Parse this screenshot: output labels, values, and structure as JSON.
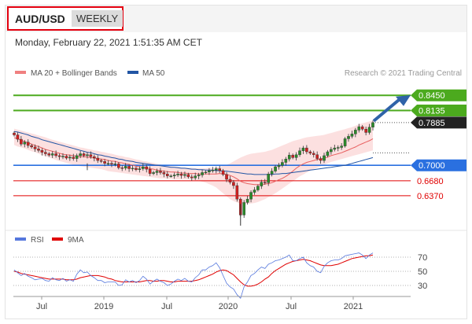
{
  "header": {
    "symbol": "AUD/USD",
    "period": "WEEKLY",
    "datetime": "Monday, February 22, 2021 1:51:35 AM CET"
  },
  "legend_main": [
    {
      "label": "MA 20 + Bollinger Bands",
      "color": "#f08080"
    },
    {
      "label": "MA 50",
      "color": "#2255a4"
    }
  ],
  "credit": "Research © 2021 Trading Central",
  "legend_rsi": [
    {
      "label": "RSI",
      "color": "#5577dd"
    },
    {
      "label": "9MA",
      "color": "#e00000"
    }
  ],
  "chart_data": {
    "type": "candlestick",
    "x_ticks": [
      "Jul",
      "2019",
      "Jul",
      "2020",
      "Jul",
      "2021"
    ],
    "price_range": [
      0.57,
      0.86
    ],
    "levels": [
      {
        "label": "0.8450",
        "value": 0.845,
        "kind": "resistance",
        "color": "#4caa1e"
      },
      {
        "label": "0.8135",
        "value": 0.8135,
        "kind": "resistance",
        "color": "#4caa1e"
      },
      {
        "label": "0.7885",
        "value": 0.7885,
        "kind": "last",
        "color": "#222222"
      },
      {
        "label": "0.7000",
        "value": 0.7,
        "kind": "pivot",
        "color": "#2a70e0"
      },
      {
        "label": "0.6680",
        "value": 0.668,
        "kind": "support",
        "color": "#e00000"
      },
      {
        "label": "0.6370",
        "value": 0.637,
        "kind": "support",
        "color": "#e00000"
      }
    ],
    "close_series": [
      0.763,
      0.754,
      0.744,
      0.748,
      0.741,
      0.738,
      0.734,
      0.731,
      0.727,
      0.724,
      0.721,
      0.724,
      0.72,
      0.718,
      0.719,
      0.715,
      0.717,
      0.714,
      0.72,
      0.724,
      0.72,
      0.722,
      0.718,
      0.715,
      0.71,
      0.708,
      0.704,
      0.704,
      0.703,
      0.703,
      0.695,
      0.694,
      0.698,
      0.693,
      0.694,
      0.691,
      0.693,
      0.697,
      0.692,
      0.683,
      0.685,
      0.688,
      0.685,
      0.682,
      0.678,
      0.678,
      0.68,
      0.682,
      0.679,
      0.681,
      0.676,
      0.674,
      0.678,
      0.68,
      0.685,
      0.686,
      0.689,
      0.69,
      0.693,
      0.689,
      0.681,
      0.671,
      0.665,
      0.658,
      0.63,
      0.597,
      0.623,
      0.63,
      0.644,
      0.649,
      0.657,
      0.665,
      0.664,
      0.682,
      0.688,
      0.697,
      0.7,
      0.706,
      0.713,
      0.721,
      0.716,
      0.722,
      0.73,
      0.736,
      0.728,
      0.725,
      0.722,
      0.714,
      0.71,
      0.72,
      0.728,
      0.733,
      0.736,
      0.737,
      0.74,
      0.755,
      0.76,
      0.765,
      0.773,
      0.78,
      0.775,
      0.768,
      0.779,
      0.7885
    ],
    "ma20_series": [
      0.757,
      0.755,
      0.752,
      0.749,
      0.747,
      0.744,
      0.741,
      0.739,
      0.736,
      0.733,
      0.731,
      0.729,
      0.727,
      0.725,
      0.723,
      0.722,
      0.721,
      0.72,
      0.719,
      0.718,
      0.718,
      0.717,
      0.716,
      0.715,
      0.714,
      0.713,
      0.712,
      0.71,
      0.709,
      0.708,
      0.706,
      0.705,
      0.703,
      0.702,
      0.7,
      0.698,
      0.697,
      0.696,
      0.695,
      0.693,
      0.692,
      0.69,
      0.689,
      0.688,
      0.687,
      0.686,
      0.686,
      0.685,
      0.684,
      0.684,
      0.683,
      0.683,
      0.683,
      0.682,
      0.682,
      0.682,
      0.682,
      0.682,
      0.682,
      0.683,
      0.682,
      0.681,
      0.679,
      0.676,
      0.672,
      0.667,
      0.664,
      0.662,
      0.661,
      0.66,
      0.66,
      0.66,
      0.661,
      0.662,
      0.664,
      0.667,
      0.67,
      0.673,
      0.677,
      0.682,
      0.688,
      0.694,
      0.699,
      0.703,
      0.706,
      0.708,
      0.71,
      0.712,
      0.713,
      0.715,
      0.717,
      0.72,
      0.722,
      0.724,
      0.726,
      0.729,
      0.732,
      0.735,
      0.738,
      0.742,
      0.745,
      0.748,
      0.751,
      0.755
    ],
    "ma50_series": [
      0.77,
      0.769,
      0.767,
      0.765,
      0.763,
      0.76,
      0.758,
      0.756,
      0.753,
      0.751,
      0.749,
      0.747,
      0.745,
      0.743,
      0.741,
      0.739,
      0.737,
      0.735,
      0.733,
      0.731,
      0.729,
      0.727,
      0.726,
      0.724,
      0.722,
      0.721,
      0.719,
      0.718,
      0.716,
      0.715,
      0.713,
      0.712,
      0.71,
      0.709,
      0.708,
      0.706,
      0.705,
      0.704,
      0.703,
      0.702,
      0.701,
      0.7,
      0.699,
      0.698,
      0.697,
      0.696,
      0.696,
      0.695,
      0.694,
      0.694,
      0.693,
      0.692,
      0.692,
      0.691,
      0.691,
      0.69,
      0.69,
      0.69,
      0.689,
      0.689,
      0.688,
      0.688,
      0.687,
      0.686,
      0.685,
      0.684,
      0.683,
      0.682,
      0.682,
      0.681,
      0.681,
      0.681,
      0.681,
      0.681,
      0.681,
      0.682,
      0.682,
      0.683,
      0.683,
      0.684,
      0.685,
      0.686,
      0.687,
      0.688,
      0.689,
      0.69,
      0.691,
      0.692,
      0.693,
      0.694,
      0.695,
      0.696,
      0.697,
      0.698,
      0.699,
      0.7,
      0.702,
      0.704,
      0.706,
      0.708,
      0.71,
      0.712,
      0.714,
      0.716
    ],
    "bb_upper_series": [
      0.776,
      0.774,
      0.772,
      0.77,
      0.768,
      0.766,
      0.764,
      0.762,
      0.76,
      0.758,
      0.755,
      0.753,
      0.751,
      0.749,
      0.747,
      0.745,
      0.743,
      0.741,
      0.739,
      0.737,
      0.736,
      0.734,
      0.733,
      0.731,
      0.73,
      0.728,
      0.727,
      0.725,
      0.724,
      0.722,
      0.72,
      0.719,
      0.717,
      0.716,
      0.714,
      0.712,
      0.711,
      0.709,
      0.708,
      0.706,
      0.705,
      0.703,
      0.702,
      0.7,
      0.699,
      0.698,
      0.697,
      0.697,
      0.696,
      0.695,
      0.695,
      0.695,
      0.694,
      0.694,
      0.694,
      0.694,
      0.695,
      0.695,
      0.696,
      0.697,
      0.699,
      0.701,
      0.704,
      0.708,
      0.712,
      0.716,
      0.719,
      0.722,
      0.724,
      0.725,
      0.726,
      0.727,
      0.728,
      0.73,
      0.732,
      0.735,
      0.738,
      0.741,
      0.744,
      0.747,
      0.75,
      0.752,
      0.754,
      0.756,
      0.758,
      0.759,
      0.76,
      0.761,
      0.762,
      0.763,
      0.765,
      0.767,
      0.769,
      0.771,
      0.773,
      0.775,
      0.777,
      0.779,
      0.782,
      0.785,
      0.787,
      0.789,
      0.791,
      0.793
    ],
    "bb_lower_series": [
      0.742,
      0.739,
      0.737,
      0.735,
      0.732,
      0.729,
      0.727,
      0.724,
      0.721,
      0.719,
      0.716,
      0.714,
      0.711,
      0.709,
      0.707,
      0.705,
      0.703,
      0.701,
      0.699,
      0.698,
      0.697,
      0.696,
      0.695,
      0.694,
      0.693,
      0.692,
      0.69,
      0.688,
      0.687,
      0.686,
      0.685,
      0.684,
      0.683,
      0.682,
      0.681,
      0.68,
      0.679,
      0.678,
      0.677,
      0.676,
      0.675,
      0.674,
      0.673,
      0.673,
      0.672,
      0.672,
      0.671,
      0.671,
      0.671,
      0.671,
      0.671,
      0.67,
      0.669,
      0.668,
      0.666,
      0.664,
      0.661,
      0.658,
      0.654,
      0.648,
      0.642,
      0.636,
      0.63,
      0.626,
      0.623,
      0.621,
      0.62,
      0.62,
      0.621,
      0.622,
      0.624,
      0.627,
      0.63,
      0.634,
      0.638,
      0.642,
      0.647,
      0.652,
      0.657,
      0.662,
      0.667,
      0.672,
      0.677,
      0.681,
      0.685,
      0.689,
      0.692,
      0.695,
      0.698,
      0.701,
      0.704,
      0.707,
      0.709,
      0.711,
      0.713,
      0.715,
      0.717,
      0.719,
      0.721,
      0.723,
      0.725,
      0.727,
      0.729,
      0.731
    ],
    "rsi": {
      "levels": [
        "70",
        "50",
        "30"
      ],
      "range": [
        20,
        80
      ],
      "rsi_series": [
        52,
        48,
        44,
        47,
        43,
        41,
        38,
        39,
        40,
        37,
        36,
        41,
        38,
        37,
        40,
        36,
        38,
        36,
        46,
        52,
        48,
        49,
        44,
        41,
        37,
        37,
        34,
        35,
        35,
        35,
        30,
        31,
        38,
        35,
        37,
        34,
        37,
        43,
        39,
        32,
        36,
        39,
        36,
        34,
        30,
        32,
        36,
        39,
        37,
        40,
        36,
        35,
        41,
        45,
        52,
        52,
        56,
        58,
        62,
        55,
        44,
        33,
        28,
        25,
        17,
        12,
        28,
        35,
        44,
        47,
        52,
        56,
        54,
        60,
        62,
        65,
        66,
        68,
        70,
        73,
        65,
        65,
        68,
        70,
        62,
        58,
        56,
        50,
        48,
        57,
        62,
        65,
        66,
        66,
        68,
        72,
        73,
        74,
        75,
        76,
        73,
        68,
        73,
        76
      ],
      "ma9_series": [
        50,
        49,
        47,
        46,
        45,
        44,
        43,
        42,
        41,
        40,
        39,
        39,
        39,
        39,
        39,
        38,
        38,
        38,
        39,
        41,
        42,
        43,
        44,
        44,
        44,
        43,
        42,
        40,
        39,
        37,
        36,
        35,
        35,
        35,
        35,
        35,
        35,
        36,
        37,
        37,
        36,
        36,
        37,
        37,
        36,
        35,
        35,
        36,
        36,
        36,
        36,
        36,
        37,
        38,
        40,
        42,
        44,
        46,
        49,
        51,
        52,
        51,
        48,
        45,
        40,
        35,
        31,
        29,
        29,
        30,
        32,
        35,
        39,
        42,
        47,
        51,
        54,
        57,
        60,
        62,
        64,
        65,
        66,
        67,
        66,
        65,
        63,
        61,
        59,
        58,
        58,
        58,
        59,
        60,
        62,
        64,
        66,
        68,
        69,
        70,
        71,
        72,
        72,
        73
      ]
    }
  }
}
